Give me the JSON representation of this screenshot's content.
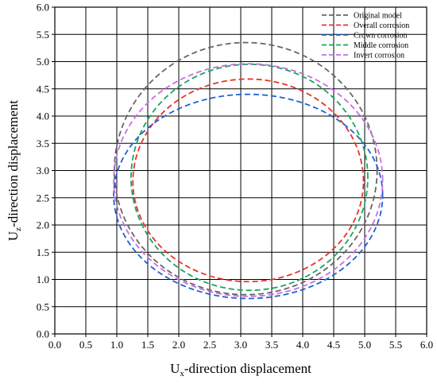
{
  "chart_data": {
    "type": "line",
    "style": "dashed closed curves",
    "xlabel": {
      "main": "U",
      "sub": "x",
      "rest": "-direction displacement"
    },
    "ylabel": {
      "main": "U",
      "sub": "z",
      "rest": "-direction displacement"
    },
    "xlim": [
      0.0,
      6.0
    ],
    "ylim": [
      0.0,
      6.0
    ],
    "xticks": [
      "0.0",
      "0.5",
      "1.0",
      "1.5",
      "2.0",
      "2.5",
      "3.0",
      "3.5",
      "4.0",
      "4.5",
      "5.0",
      "5.5",
      "6.0"
    ],
    "yticks": [
      "0.0",
      "0.5",
      "1.0",
      "1.5",
      "2.0",
      "2.5",
      "3.0",
      "3.5",
      "4.0",
      "4.5",
      "5.0",
      "5.5",
      "6.0"
    ],
    "grid": true,
    "legend_position": "top-right",
    "series": [
      {
        "name": "Original model",
        "color": "#666666",
        "cx": 3.08,
        "cy": 3.0,
        "rx": 2.12,
        "ry_top": 2.35,
        "ry_bottom": 2.28
      },
      {
        "name": "Overall corrosion",
        "color": "#e8332b",
        "cx": 3.12,
        "cy": 2.8,
        "rx": 1.86,
        "ry_top": 1.88,
        "ry_bottom": 1.84
      },
      {
        "name": "Crown corrosion",
        "color": "#1c63d6",
        "cx": 3.12,
        "cy": 2.55,
        "rx": 2.17,
        "ry_top": 1.85,
        "ry_bottom": 1.9
      },
      {
        "name": "Middle corrosion",
        "color": "#1aa560",
        "cx": 3.14,
        "cy": 2.87,
        "rx": 1.91,
        "ry_top": 2.08,
        "ry_bottom": 2.07
      },
      {
        "name": "Invert corrosion",
        "color": "#c86ee0",
        "cx": 3.12,
        "cy": 2.82,
        "rx": 2.17,
        "ry_top": 2.14,
        "ry_bottom": 2.13
      }
    ]
  }
}
